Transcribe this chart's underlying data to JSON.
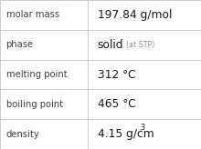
{
  "rows": [
    {
      "label": "molar mass",
      "value": "197.84 g/mol",
      "has_sup": false,
      "has_sub": false
    },
    {
      "label": "phase",
      "value": "solid",
      "has_sup": false,
      "has_sub": true,
      "sub": "(at STP)"
    },
    {
      "label": "melting point",
      "value": "312 °C",
      "has_sup": false,
      "has_sub": false
    },
    {
      "label": "boiling point",
      "value": "465 °C",
      "has_sup": false,
      "has_sub": false
    },
    {
      "label": "density",
      "value": "4.15 g/cm",
      "has_sup": true,
      "sup": "3",
      "has_sub": false
    }
  ],
  "bg_color": "#ffffff",
  "border_color": "#c8c8c8",
  "label_color": "#404040",
  "value_color": "#1a1a1a",
  "sub_color": "#909090",
  "label_fontsize": 7.2,
  "value_fontsize": 8.8,
  "sub_fontsize": 5.8,
  "sup_fontsize": 5.8,
  "col_split": 0.435,
  "figw": 2.2,
  "figh": 1.64,
  "dpi": 100
}
